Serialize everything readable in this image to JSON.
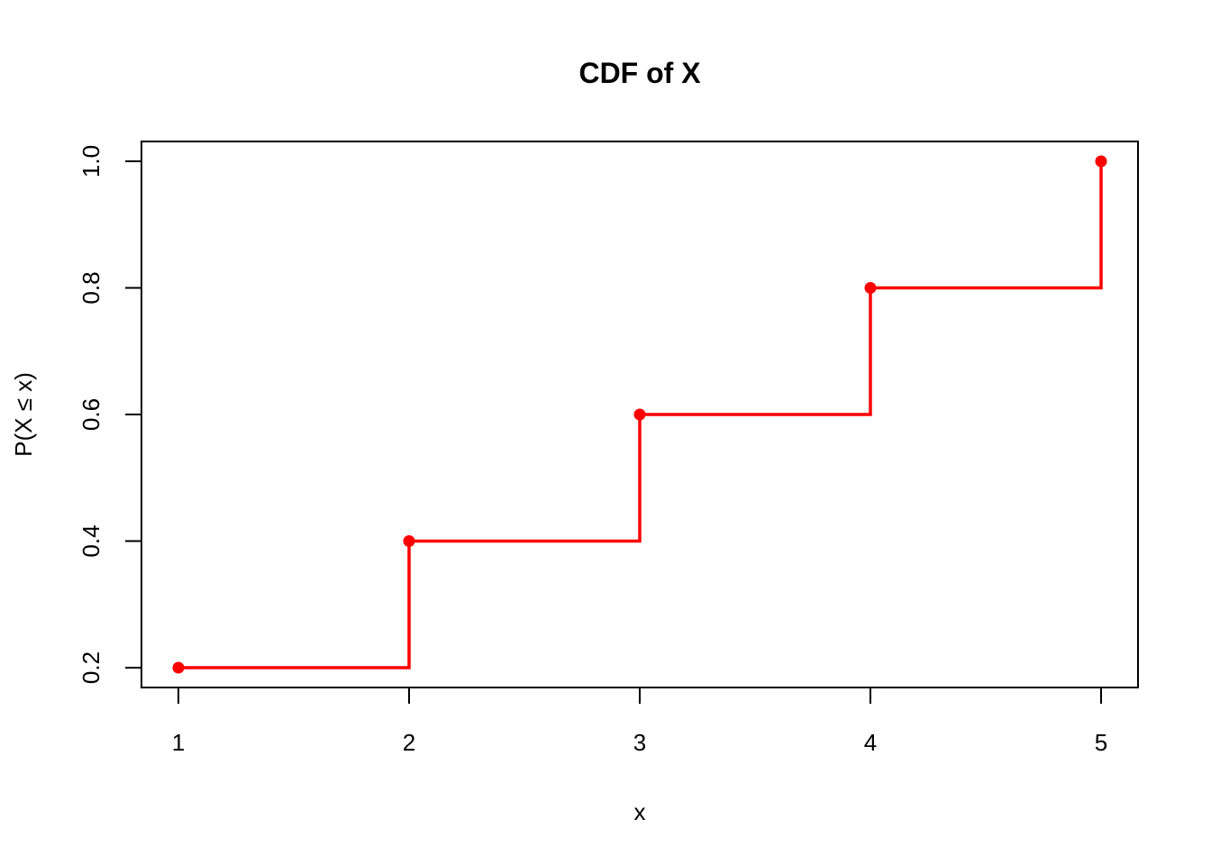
{
  "chart_data": {
    "type": "line",
    "title": "CDF of X",
    "xlabel": "x",
    "ylabel": "P(X ≤ x)",
    "x": [
      1,
      2,
      3,
      4,
      5
    ],
    "series": [
      {
        "values": [
          0.2,
          0.4,
          0.6,
          0.8,
          1.0
        ]
      }
    ],
    "step": true,
    "xlim": [
      1,
      5
    ],
    "ylim": [
      0.2,
      1.0
    ],
    "x_ticks": [
      "1",
      "2",
      "3",
      "4",
      "5"
    ],
    "y_ticks": [
      "0.2",
      "0.4",
      "0.6",
      "0.8",
      "1.0"
    ],
    "grid": false,
    "color": "#ff0000"
  }
}
